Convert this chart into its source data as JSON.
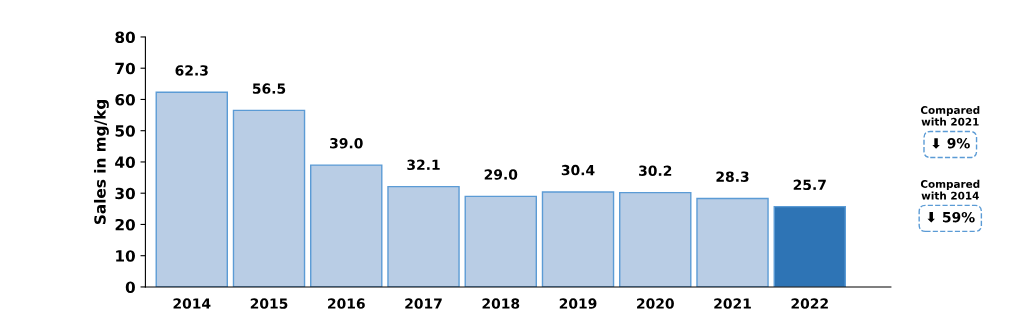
{
  "chart_data": {
    "type": "bar",
    "ylabel": "Sales in mg/kg",
    "categories": [
      "2014",
      "2015",
      "2016",
      "2017",
      "2018",
      "2019",
      "2020",
      "2021",
      "2022"
    ],
    "values": [
      62.3,
      56.5,
      39.0,
      32.1,
      29.0,
      30.4,
      30.2,
      28.3,
      25.7
    ],
    "colors": [
      "#b9cde5",
      "#b9cde5",
      "#b9cde5",
      "#b9cde5",
      "#b9cde5",
      "#b9cde5",
      "#b9cde5",
      "#b9cde5",
      "#2e74b5"
    ],
    "value_labels": [
      "62.3",
      "56.5",
      "39.0",
      "32.1",
      "29.0",
      "30.4",
      "30.2",
      "28.3",
      "25.7"
    ],
    "ylim": [
      0,
      80
    ],
    "yticks": [
      0,
      10,
      20,
      30,
      40,
      50,
      60,
      70,
      80
    ],
    "grid": false,
    "legend": false,
    "annotations": [
      "Compared\nwith 2021",
      "⬇ 9%",
      "Compared\nwith 2014",
      "⬇ 59%"
    ]
  }
}
